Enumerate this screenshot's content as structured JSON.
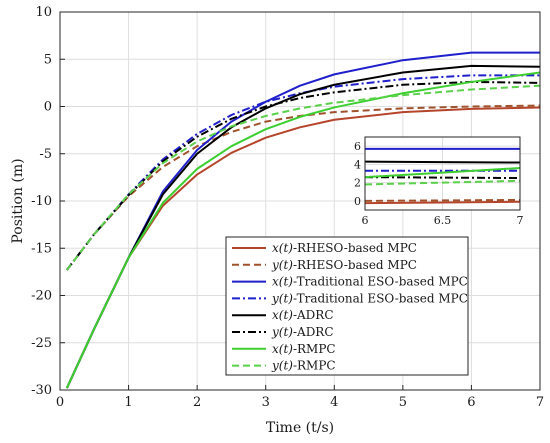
{
  "chart_data": {
    "type": "line",
    "xlabel": "Time (t/s)",
    "ylabel": "Position (m)",
    "xlim": [
      0,
      7
    ],
    "ylim": [
      -30,
      10
    ],
    "xticks": [
      0,
      1,
      2,
      3,
      4,
      5,
      6,
      7
    ],
    "yticks": [
      -30,
      -25,
      -20,
      -15,
      -10,
      -5,
      0,
      5,
      10
    ],
    "grid": true,
    "legend_position": "lower-center",
    "series": [
      {
        "name": "x(t)-RHESO-based MPC",
        "var": "x(t)",
        "suffix": "-RHESO-based MPC",
        "color": "#b5452a",
        "dash": "solid",
        "x": [
          0.1,
          0.5,
          1,
          1.5,
          2,
          2.5,
          3,
          3.5,
          4,
          5,
          6,
          7
        ],
        "y": [
          -29.8,
          -23.5,
          -16.0,
          -10.5,
          -7.2,
          -4.9,
          -3.3,
          -2.2,
          -1.4,
          -0.6,
          -0.25,
          -0.1
        ]
      },
      {
        "name": "y(t)-RHESO-based MPC",
        "var": "y(t)",
        "suffix": "-RHESO-based MPC",
        "color": "#a0522d",
        "dash": "dash",
        "x": [
          0.1,
          0.5,
          1,
          1.5,
          2,
          2.5,
          3,
          3.5,
          4,
          5,
          6,
          7
        ],
        "y": [
          -17.3,
          -13.5,
          -9.5,
          -6.4,
          -4.2,
          -2.7,
          -1.6,
          -1.0,
          -0.6,
          -0.2,
          0.0,
          0.1
        ]
      },
      {
        "name": "x(t)-Traditional ESO-based MPC",
        "var": "x(t)",
        "suffix": "-Traditional ESO-based MPC",
        "color": "#1f1fcc",
        "dash": "solid",
        "x": [
          0.1,
          0.5,
          1,
          1.5,
          2,
          2.5,
          3,
          3.5,
          4,
          5,
          6,
          7
        ],
        "y": [
          -29.8,
          -23.5,
          -16.0,
          -9.0,
          -4.6,
          -1.6,
          0.5,
          2.2,
          3.4,
          4.9,
          5.7,
          5.7
        ]
      },
      {
        "name": "y(t)-Traditional ESO-based MPC",
        "var": "y(t)",
        "suffix": "-Traditional ESO-based MPC",
        "color": "#1f1fcc",
        "dash": "dashdot",
        "x": [
          0.1,
          0.5,
          1,
          1.5,
          2,
          2.5,
          3,
          3.5,
          4,
          5,
          6,
          7
        ],
        "y": [
          -17.3,
          -13.5,
          -9.3,
          -5.6,
          -2.9,
          -0.9,
          0.5,
          1.4,
          2.1,
          2.9,
          3.3,
          3.3
        ]
      },
      {
        "name": "x(t)-ADRC",
        "var": "x(t)",
        "suffix": "-ADRC",
        "color": "#000000",
        "dash": "solid",
        "x": [
          0.1,
          0.5,
          1,
          1.5,
          2,
          2.5,
          3,
          3.5,
          4,
          5,
          6,
          7
        ],
        "y": [
          -29.8,
          -23.5,
          -16.0,
          -9.3,
          -5.0,
          -2.2,
          -0.2,
          1.3,
          2.3,
          3.6,
          4.3,
          4.2
        ]
      },
      {
        "name": "y(t)-ADRC",
        "var": "y(t)",
        "suffix": "-ADRC",
        "color": "#000000",
        "dash": "dashdot",
        "x": [
          0.1,
          0.5,
          1,
          1.5,
          2,
          2.5,
          3,
          3.5,
          4,
          5,
          6,
          7
        ],
        "y": [
          -17.3,
          -13.5,
          -9.4,
          -5.8,
          -3.2,
          -1.3,
          0.0,
          0.9,
          1.5,
          2.3,
          2.6,
          2.5
        ]
      },
      {
        "name": "x(t)-RMPC",
        "var": "x(t)",
        "suffix": "-RMPC",
        "color": "#3ccf2f",
        "dash": "solid",
        "x": [
          0.1,
          0.5,
          1,
          1.5,
          2,
          2.5,
          3,
          3.5,
          4,
          5,
          6,
          7
        ],
        "y": [
          -29.8,
          -23.5,
          -16.0,
          -10.2,
          -6.6,
          -4.2,
          -2.4,
          -1.1,
          -0.1,
          1.4,
          2.6,
          3.6
        ]
      },
      {
        "name": "y(t)-RMPC",
        "var": "y(t)",
        "suffix": "-RMPC",
        "color": "#5ad14a",
        "dash": "dash",
        "x": [
          0.1,
          0.5,
          1,
          1.5,
          2,
          2.5,
          3,
          3.5,
          4,
          5,
          6,
          7
        ],
        "y": [
          -17.3,
          -13.5,
          -9.3,
          -6.0,
          -3.7,
          -2.1,
          -1.0,
          -0.2,
          0.4,
          1.2,
          1.8,
          2.2
        ]
      }
    ],
    "inset": {
      "xlim": [
        6,
        7
      ],
      "ylim": [
        -1,
        7
      ],
      "xticks": [
        6,
        6.5,
        7
      ],
      "yticks": [
        0,
        2,
        4,
        6
      ],
      "grid": true,
      "series_y": [
        {
          "y": [
            -0.25,
            -0.18,
            -0.1
          ]
        },
        {
          "y": [
            0.0,
            0.05,
            0.1
          ]
        },
        {
          "y": [
            5.7,
            5.7,
            5.7
          ]
        },
        {
          "y": [
            3.3,
            3.3,
            3.3
          ]
        },
        {
          "y": [
            4.3,
            4.25,
            4.2
          ]
        },
        {
          "y": [
            2.6,
            2.55,
            2.5
          ]
        },
        {
          "y": [
            2.6,
            3.1,
            3.6
          ]
        },
        {
          "y": [
            1.8,
            2.0,
            2.2
          ]
        }
      ]
    }
  }
}
